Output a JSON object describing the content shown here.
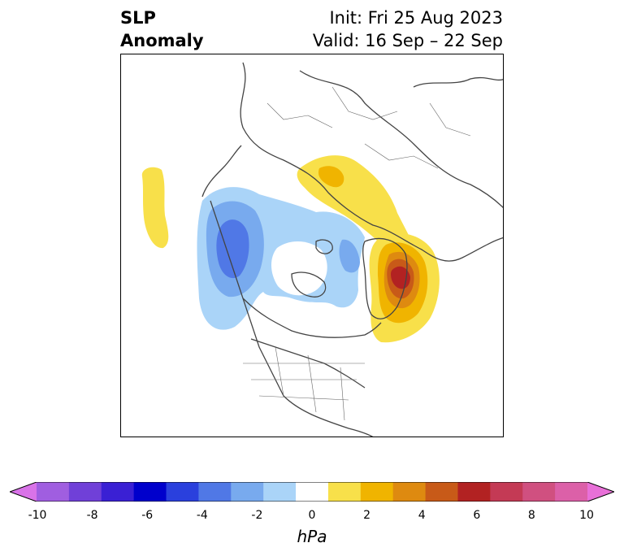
{
  "title": {
    "left_line1": "SLP",
    "left_line2": "Anomaly",
    "right_line1": "Init: Fri 25 Aug 2023",
    "right_line2": "Valid: 16 Sep – 22 Sep"
  },
  "colorbar": {
    "units": "hPa",
    "ticks": [
      "-10",
      "-8",
      "-6",
      "-4",
      "-2",
      "0",
      "2",
      "4",
      "6",
      "8",
      "10"
    ],
    "extend": "both",
    "colors": [
      "#d973e8",
      "#a05ee0",
      "#7040d8",
      "#3a20d4",
      "#0000cc",
      "#2a40dd",
      "#5078e6",
      "#78aaee",
      "#aad4f8",
      "#ffffff",
      "#f8e04a",
      "#f0b400",
      "#de8a10",
      "#c85a18",
      "#b22222",
      "#c43a55",
      "#d05080",
      "#dc60a8",
      "#e870d8"
    ]
  },
  "map": {
    "projection": "north-polar-stereographic",
    "features": [
      "coastlines",
      "country-borders",
      "state-borders"
    ],
    "anomalies": [
      {
        "name": "negative-anomaly-canada",
        "min_hpa": -4
      },
      {
        "name": "positive-anomaly-greenland",
        "max_hpa": 7
      },
      {
        "name": "positive-anomaly-scandinavia",
        "max_hpa": 3
      },
      {
        "name": "positive-anomaly-pacific",
        "max_hpa": 2
      }
    ]
  }
}
